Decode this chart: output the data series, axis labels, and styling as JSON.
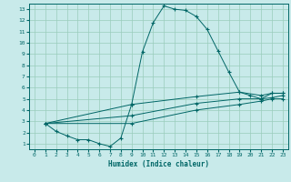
{
  "xlabel": "Humidex (Indice chaleur)",
  "bg_color": "#c8eaea",
  "line_color": "#006666",
  "grid_color": "#99ccbb",
  "xlim": [
    -0.5,
    23.5
  ],
  "ylim": [
    0.5,
    13.5
  ],
  "xticks": [
    0,
    1,
    2,
    3,
    4,
    5,
    6,
    7,
    8,
    9,
    10,
    11,
    12,
    13,
    14,
    15,
    16,
    17,
    18,
    19,
    20,
    21,
    22,
    23
  ],
  "yticks": [
    1,
    2,
    3,
    4,
    5,
    6,
    7,
    8,
    9,
    10,
    11,
    12,
    13
  ],
  "series": [
    {
      "x": [
        1,
        2,
        3,
        4,
        5,
        6,
        7,
        8,
        9,
        10,
        11,
        12,
        13,
        14,
        15,
        16,
        17,
        18,
        19,
        20,
        21,
        22,
        23
      ],
      "y": [
        2.8,
        2.1,
        1.7,
        1.35,
        1.35,
        1.0,
        0.75,
        1.5,
        4.5,
        9.2,
        11.8,
        13.3,
        13.0,
        12.9,
        12.35,
        11.2,
        9.3,
        7.4,
        5.6,
        5.3,
        5.0,
        5.5,
        5.5
      ]
    },
    {
      "x": [
        1,
        9,
        15,
        19,
        21,
        22,
        23
      ],
      "y": [
        2.8,
        4.5,
        5.2,
        5.6,
        5.3,
        5.5,
        5.5
      ]
    },
    {
      "x": [
        1,
        9,
        15,
        19,
        21,
        22,
        23
      ],
      "y": [
        2.8,
        3.5,
        4.6,
        5.0,
        5.0,
        5.1,
        5.3
      ]
    },
    {
      "x": [
        1,
        9,
        15,
        19,
        21,
        22,
        23
      ],
      "y": [
        2.8,
        2.8,
        4.0,
        4.5,
        4.8,
        5.0,
        5.0
      ]
    }
  ]
}
